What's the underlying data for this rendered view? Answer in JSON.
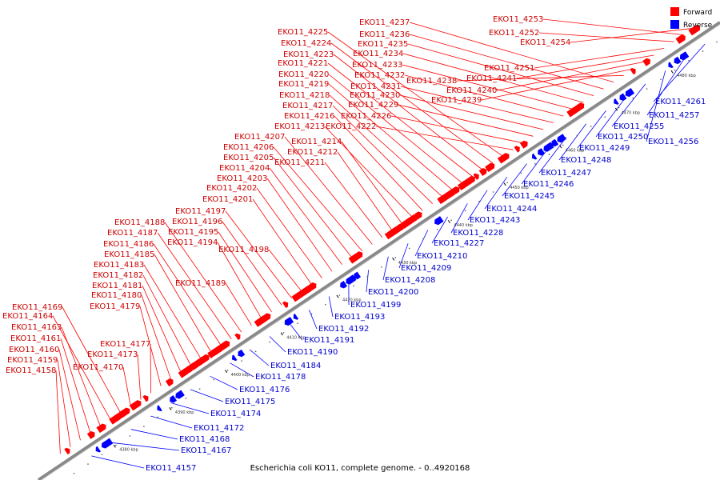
{
  "caption": "Escherichia coli KO11, complete genome. - 0..4920168",
  "legend": {
    "forward_label": "Forward",
    "reverse_label": "Reverse",
    "forward_color": "#ff0000",
    "reverse_color": "#0000ff"
  },
  "colors": {
    "axis": "#888888",
    "forward_label": "#cc0000",
    "reverse_label": "#0000cc",
    "tick": "#000000"
  },
  "ticks": [
    "4380 kbp",
    "4390 kbp",
    "4400 kbp",
    "4410 kbp",
    "4420 kbp",
    "4430 kbp",
    "4440 kbp",
    "4450 kbp",
    "4460 kbp",
    "4470 kbp",
    "4480 kbp",
    "4490 kbp"
  ],
  "forward_labels": [
    "EKO11_4158",
    "EKO11_4159",
    "EKO11_4160",
    "EKO11_4161",
    "EKO11_4163",
    "EKO11_4164",
    "EKO11_4169",
    "EKO11_4170",
    "EKO11_4173",
    "EKO11_4177",
    "EKO11_4179",
    "EKO11_4180",
    "EKO11_4181",
    "EKO11_4182",
    "EKO11_4183",
    "EKO11_4185",
    "EKO11_4186",
    "EKO11_4187",
    "EKO11_4188",
    "EKO11_4189",
    "EKO11_4194",
    "EKO11_4195",
    "EKO11_4196",
    "EKO11_4197",
    "EKO11_4198",
    "EKO11_4201",
    "EKO11_4202",
    "EKO11_4203",
    "EKO11_4204",
    "EKO11_4205",
    "EKO11_4206",
    "EKO11_4207",
    "EKO11_4211",
    "EKO11_4212",
    "EKO11_4214",
    "EKO11_4213",
    "EKO11_4216",
    "EKO11_4217",
    "EKO11_4218",
    "EKO11_4219",
    "EKO11_4220",
    "EKO11_4221",
    "EKO11_4223",
    "EKO11_4224",
    "EKO11_4225",
    "EKO11_4222",
    "EKO11_4226",
    "EKO11_4229",
    "EKO11_4230",
    "EKO11_4231",
    "EKO11_4232",
    "EKO11_4233",
    "EKO11_4234",
    "EKO11_4235",
    "EKO11_4236",
    "EKO11_4237",
    "EKO11_4238",
    "EKO11_4239",
    "EKO11_4240",
    "EKO11_4241",
    "EKO11_4251",
    "EKO11_4252",
    "EKO11_4253",
    "EKO11_4254"
  ],
  "reverse_labels": [
    "EKO11_4157",
    "EKO11_4167",
    "EKO11_4168",
    "EKO11_4172",
    "EKO11_4174",
    "EKO11_4175",
    "EKO11_4176",
    "EKO11_4178",
    "EKO11_4184",
    "EKO11_4190",
    "EKO11_4191",
    "EKO11_4192",
    "EKO11_4193",
    "EKO11_4199",
    "EKO11_4200",
    "EKO11_4208",
    "EKO11_4209",
    "EKO11_4210",
    "EKO11_4227",
    "EKO11_4228",
    "EKO11_4243",
    "EKO11_4244",
    "EKO11_4245",
    "EKO11_4246",
    "EKO11_4247",
    "EKO11_4248",
    "EKO11_4249",
    "EKO11_4250",
    "EKO11_4255",
    "EKO11_4256",
    "EKO11_4257",
    "EKO11_4261"
  ]
}
